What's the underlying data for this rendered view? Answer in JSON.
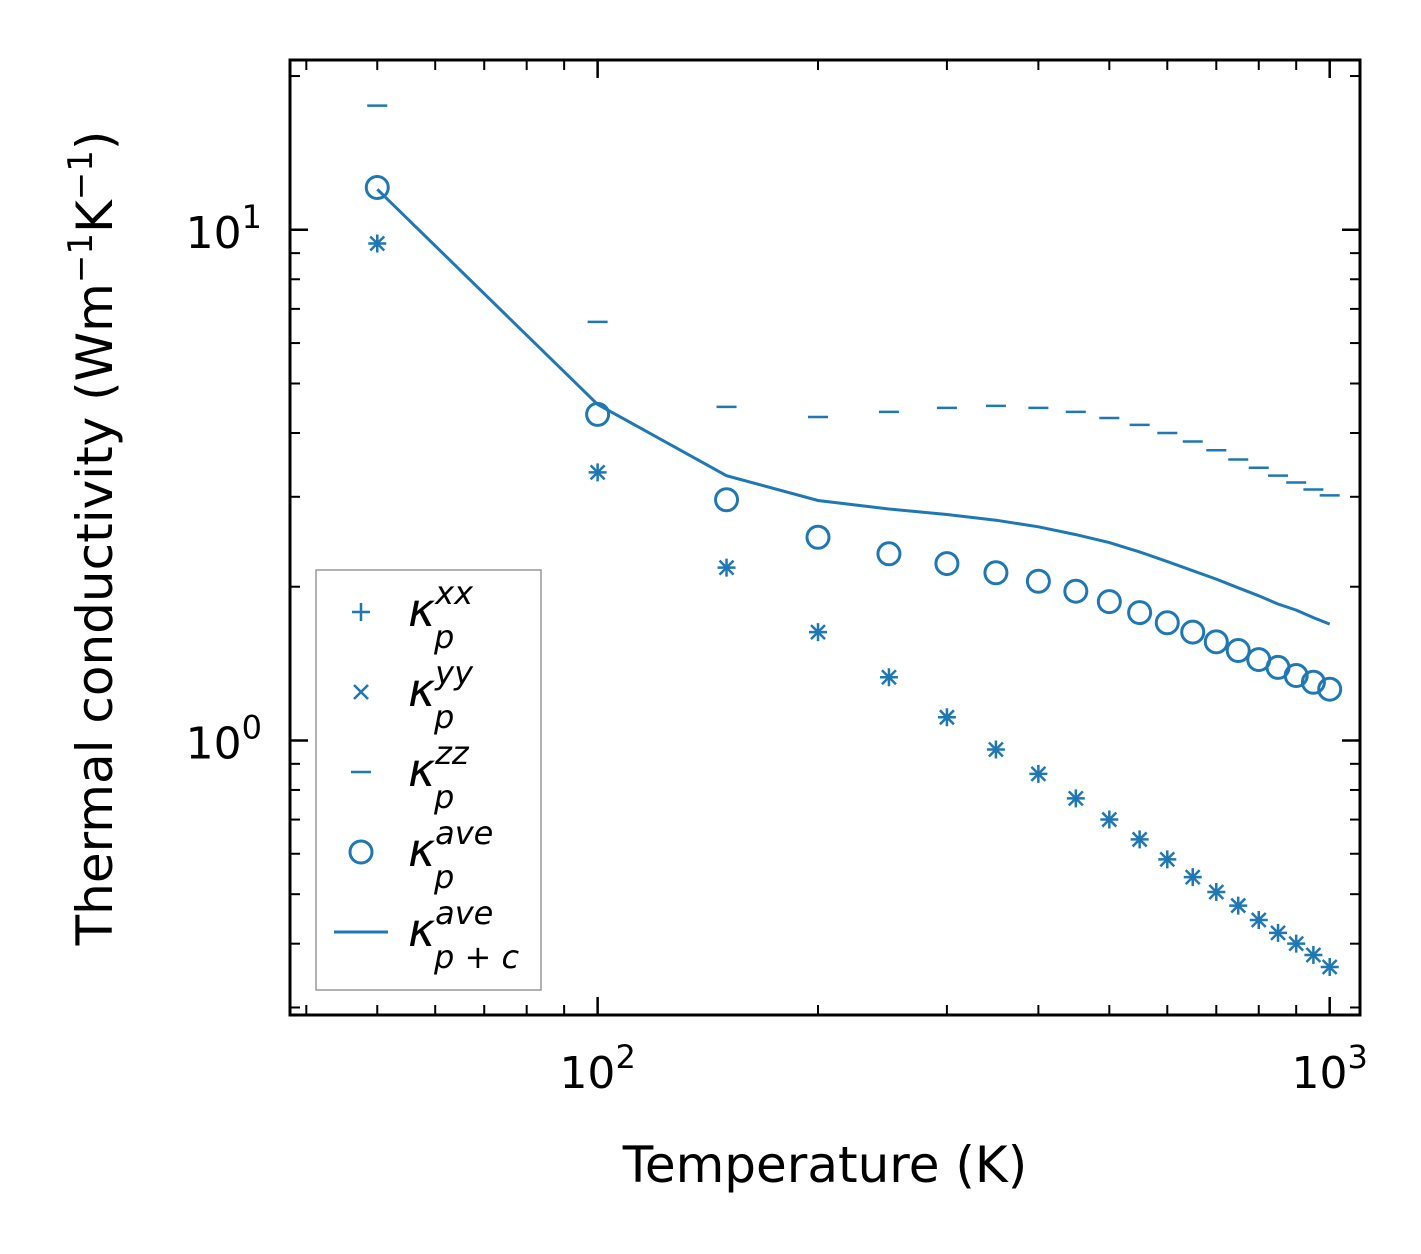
{
  "colors": {
    "series": "#1f77b4",
    "axis": "#000000",
    "legend_border": "#999999"
  },
  "chart_data": {
    "type": "scatter",
    "xscale": "log",
    "yscale": "log",
    "xlabel": "Temperature (K)",
    "ylabel": "Thermal conductivity (Wm",
    "ylabel_sup1": "−1",
    "ylabel_mid": "K",
    "ylabel_sup2": "−1",
    "ylabel_end": ")",
    "xlim": [
      38,
      1100
    ],
    "ylim": [
      0.29,
      21.5
    ],
    "xticks": [
      {
        "value": 100,
        "base": "10",
        "exp": "2"
      },
      {
        "value": 1000,
        "base": "10",
        "exp": "3"
      }
    ],
    "yticks": [
      {
        "value": 1,
        "base": "10",
        "exp": "0"
      },
      {
        "value": 10,
        "base": "10",
        "exp": "1"
      }
    ],
    "x": [
      50,
      100,
      150,
      200,
      250,
      300,
      350,
      400,
      450,
      500,
      550,
      600,
      650,
      700,
      750,
      800,
      850,
      900,
      950,
      1000
    ],
    "series": [
      {
        "name": "kappa_p_xx",
        "marker": "plus",
        "values": [
          9.4,
          3.35,
          2.18,
          1.63,
          1.33,
          1.11,
          0.96,
          0.86,
          0.77,
          0.7,
          0.64,
          0.585,
          0.54,
          0.505,
          0.475,
          0.445,
          0.42,
          0.4,
          0.38,
          0.36
        ]
      },
      {
        "name": "kappa_p_yy",
        "marker": "x",
        "values": [
          9.4,
          3.35,
          2.18,
          1.63,
          1.33,
          1.11,
          0.96,
          0.86,
          0.77,
          0.7,
          0.64,
          0.585,
          0.54,
          0.505,
          0.475,
          0.445,
          0.42,
          0.4,
          0.38,
          0.36
        ]
      },
      {
        "name": "kappa_p_zz",
        "marker": "hline",
        "values": [
          17.5,
          6.6,
          4.5,
          4.3,
          4.4,
          4.48,
          4.52,
          4.48,
          4.4,
          4.28,
          4.15,
          4.0,
          3.85,
          3.7,
          3.55,
          3.42,
          3.3,
          3.2,
          3.1,
          3.02
        ]
      },
      {
        "name": "kappa_p_ave",
        "marker": "circle",
        "values": [
          12.1,
          4.35,
          2.96,
          2.5,
          2.32,
          2.22,
          2.13,
          2.05,
          1.96,
          1.87,
          1.78,
          1.7,
          1.63,
          1.56,
          1.5,
          1.44,
          1.39,
          1.34,
          1.3,
          1.26
        ]
      },
      {
        "name": "kappa_pc_ave",
        "marker": "line",
        "x": [
          50,
          100,
          150,
          200,
          250,
          300,
          350,
          400,
          450,
          500,
          550,
          600,
          650,
          700,
          750,
          800,
          850,
          900,
          950,
          1000
        ],
        "values": [
          12.0,
          4.55,
          3.3,
          2.95,
          2.84,
          2.77,
          2.7,
          2.62,
          2.53,
          2.44,
          2.34,
          2.24,
          2.15,
          2.07,
          1.99,
          1.92,
          1.85,
          1.8,
          1.74,
          1.69
        ]
      }
    ],
    "legend": {
      "placement": "lower-left",
      "entries": [
        {
          "marker": "plus",
          "symbol": "κ",
          "sub": "p",
          "sup": "xx"
        },
        {
          "marker": "x",
          "symbol": "κ",
          "sub": "p",
          "sup": "yy"
        },
        {
          "marker": "hline",
          "symbol": "κ",
          "sub": "p",
          "sup": "zz"
        },
        {
          "marker": "circle",
          "symbol": "κ",
          "sub": "p",
          "sup": "ave"
        },
        {
          "marker": "line",
          "symbol": "κ",
          "sub": "p + c",
          "sup": "ave"
        }
      ]
    }
  }
}
